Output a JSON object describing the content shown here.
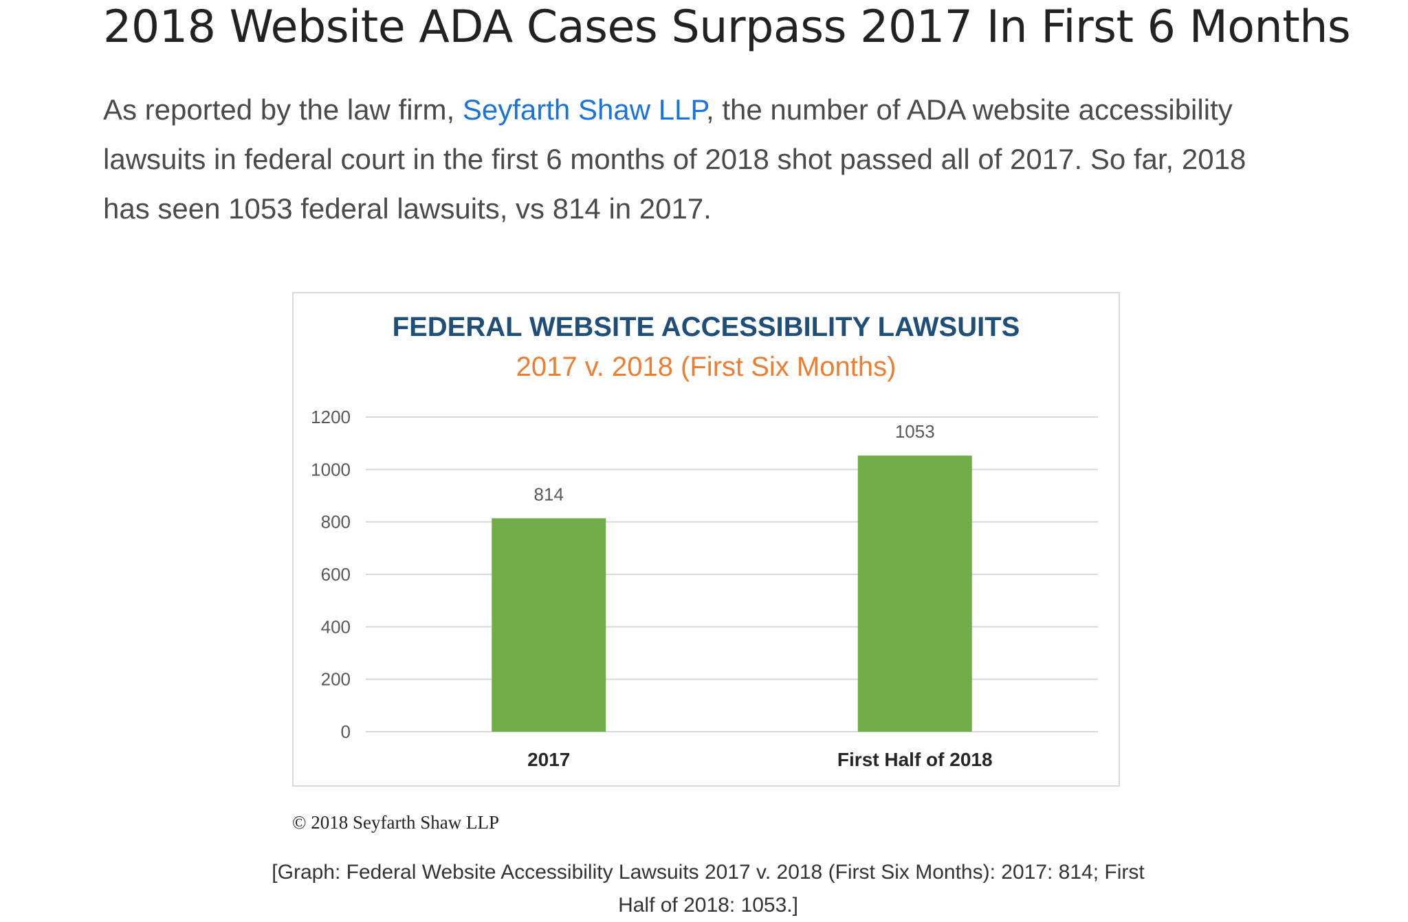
{
  "article": {
    "headline": "2018 Website ADA Cases Surpass 2017 In First 6 Months",
    "lede_before_link": "As reported by the law firm, ",
    "lede_link_text": "Seyfarth Shaw LLP",
    "lede_after_link": ", the number of ADA website accessibility lawsuits in federal court in the first 6 months of 2018 shot passed all of 2017. So far, 2018 has seen 1053 federal lawsuits, vs 814 in 2017.",
    "link_color": "#1a73d9"
  },
  "figure": {
    "copyright": "© 2018 Seyfarth Shaw LLP",
    "caption": "[Graph: Federal Website Accessibility Lawsuits 2017 v. 2018 (First Six Months): 2017: 814; First Half of 2018: 1053.]"
  },
  "chart_data": {
    "type": "bar",
    "title": "FEDERAL WEBSITE ACCESSIBILITY LAWSUITS",
    "subtitle": "2017 v. 2018 (First Six Months)",
    "categories": [
      "2017",
      "First Half of 2018"
    ],
    "values": [
      814,
      1053
    ],
    "data_labels": [
      "814",
      "1053"
    ],
    "ylim": [
      0,
      1200
    ],
    "yticks": [
      0,
      200,
      400,
      600,
      800,
      1000,
      1200
    ],
    "xlabel": "",
    "ylabel": "",
    "grid": true,
    "legend": "none",
    "colors": {
      "bar": "#70ad47",
      "title": "#1f4e79",
      "subtitle": "#ed7d31",
      "grid": "#d9d9d9",
      "axis_text": "#595959"
    }
  }
}
